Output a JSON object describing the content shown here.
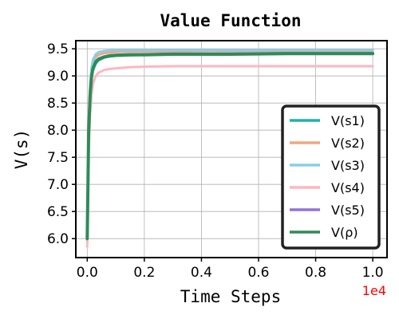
{
  "chart_data": {
    "type": "line",
    "title": "Value Function",
    "xlabel": "Time Steps",
    "ylabel": "V(s)",
    "x_offset_text": "1e4",
    "x_offset_color": "#ff0000",
    "xlim": [
      -0.04,
      1.05
    ],
    "ylim": [
      5.65,
      9.65
    ],
    "xticks": [
      0.0,
      0.2,
      0.4,
      0.6,
      0.8,
      1.0
    ],
    "xtick_labels": [
      "0.0",
      "0.2",
      "0.4",
      "0.6",
      "0.8",
      "1.0"
    ],
    "yticks": [
      6.0,
      6.5,
      7.0,
      7.5,
      8.0,
      8.5,
      9.0,
      9.5
    ],
    "ytick_labels": [
      "6.0",
      "6.5",
      "7.0",
      "7.5",
      "8.0",
      "8.5",
      "9.0",
      "9.5"
    ],
    "grid": true,
    "legend_position": "bottom-right",
    "series": [
      {
        "name": "V(s1)",
        "color": "#20b2aa",
        "width": 3,
        "x": [
          0,
          0.005,
          0.01,
          0.015,
          0.02,
          0.03,
          0.04,
          0.06,
          0.08,
          0.1,
          0.15,
          0.2,
          0.3,
          0.5,
          0.7,
          1.0
        ],
        "y": [
          6.05,
          7.9,
          8.6,
          8.95,
          9.1,
          9.23,
          9.29,
          9.34,
          9.36,
          9.37,
          9.38,
          9.39,
          9.4,
          9.41,
          9.42,
          9.43
        ]
      },
      {
        "name": "V(s2)",
        "color": "#f4a582",
        "width": 3,
        "x": [
          0,
          0.005,
          0.01,
          0.015,
          0.02,
          0.03,
          0.04,
          0.06,
          0.08,
          0.1,
          0.15,
          0.2,
          0.3,
          0.5,
          0.7,
          1.0
        ],
        "y": [
          5.95,
          8.0,
          8.75,
          9.1,
          9.25,
          9.35,
          9.39,
          9.42,
          9.43,
          9.44,
          9.45,
          9.45,
          9.45,
          9.46,
          9.46,
          9.46
        ]
      },
      {
        "name": "V(s3)",
        "color": "#87ceeb",
        "width": 3,
        "x": [
          0,
          0.005,
          0.01,
          0.015,
          0.02,
          0.03,
          0.04,
          0.06,
          0.08,
          0.1,
          0.15,
          0.2,
          0.3,
          0.5,
          0.7,
          1.0
        ],
        "y": [
          6.0,
          8.05,
          8.8,
          9.15,
          9.3,
          9.4,
          9.44,
          9.46,
          9.47,
          9.48,
          9.48,
          9.48,
          9.48,
          9.48,
          9.48,
          9.48
        ]
      },
      {
        "name": "V(s4)",
        "color": "#ffb6c1",
        "width": 3,
        "x": [
          0,
          0.005,
          0.01,
          0.015,
          0.02,
          0.03,
          0.04,
          0.06,
          0.08,
          0.1,
          0.15,
          0.2,
          0.3,
          0.5,
          0.7,
          1.0
        ],
        "y": [
          5.85,
          7.6,
          8.3,
          8.65,
          8.85,
          9.0,
          9.06,
          9.11,
          9.13,
          9.14,
          9.16,
          9.17,
          9.18,
          9.18,
          9.18,
          9.18
        ]
      },
      {
        "name": "V(s5)",
        "color": "#9370db",
        "width": 3,
        "x": [
          0,
          0.005,
          0.01,
          0.015,
          0.02,
          0.03,
          0.04,
          0.06,
          0.08,
          0.1,
          0.15,
          0.2,
          0.3,
          0.5,
          0.7,
          1.0
        ],
        "y": [
          6.0,
          7.95,
          8.65,
          9.0,
          9.15,
          9.27,
          9.32,
          9.36,
          9.38,
          9.39,
          9.4,
          9.4,
          9.41,
          9.41,
          9.42,
          9.42
        ]
      },
      {
        "name": "V(ρ)",
        "color": "#2e8b57",
        "width": 4,
        "x": [
          0,
          0.005,
          0.01,
          0.015,
          0.02,
          0.03,
          0.04,
          0.06,
          0.08,
          0.1,
          0.15,
          0.2,
          0.3,
          0.5,
          0.7,
          1.0
        ],
        "y": [
          6.0,
          7.95,
          8.65,
          8.99,
          9.14,
          9.26,
          9.31,
          9.35,
          9.37,
          9.38,
          9.39,
          9.39,
          9.4,
          9.4,
          9.41,
          9.41
        ]
      }
    ]
  }
}
